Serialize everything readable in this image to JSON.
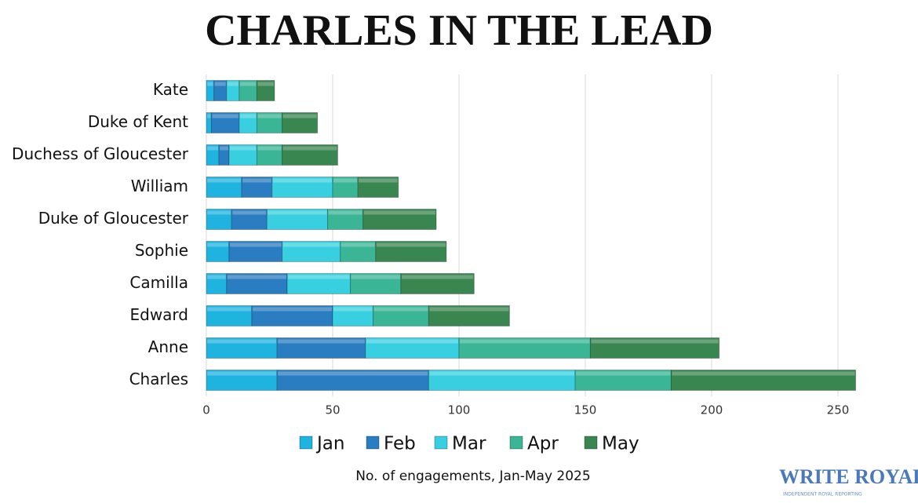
{
  "chart_data": {
    "type": "stacked_bar_horizontal",
    "title": "CHARLES IN THE LEAD",
    "x_label": "No. of engagements, Jan-May 2025",
    "logo": "WRITE ROYALTY",
    "logo_tagline": "INDEPENDENT ROYAL REPORTING",
    "categories": [
      "Kate",
      "Duke of Kent",
      "Duchess of Gloucester",
      "William",
      "Duke of Gloucester",
      "Sophie",
      "Camilla",
      "Edward",
      "Anne",
      "Charles"
    ],
    "series": [
      {
        "name": "Jan",
        "color": "#1fb3e0",
        "values": [
          3,
          2,
          5,
          14,
          10,
          9,
          8,
          18,
          28,
          28
        ]
      },
      {
        "name": "Feb",
        "color": "#2a7dc0",
        "values": [
          5,
          11,
          4,
          12,
          14,
          21,
          24,
          32,
          35,
          60
        ]
      },
      {
        "name": "Mar",
        "color": "#38d0e0",
        "values": [
          5,
          7,
          11,
          24,
          24,
          23,
          25,
          16,
          37,
          58
        ]
      },
      {
        "name": "Apr",
        "color": "#3ab595",
        "values": [
          7,
          10,
          10,
          10,
          14,
          14,
          20,
          22,
          52,
          38
        ]
      },
      {
        "name": "May",
        "color": "#3a8651",
        "values": [
          7,
          14,
          22,
          16,
          29,
          28,
          29,
          32,
          51,
          73
        ]
      }
    ],
    "xlim": [
      0,
      250
    ],
    "xticks": [
      0,
      50,
      100,
      150,
      200,
      250
    ],
    "grid": true
  }
}
